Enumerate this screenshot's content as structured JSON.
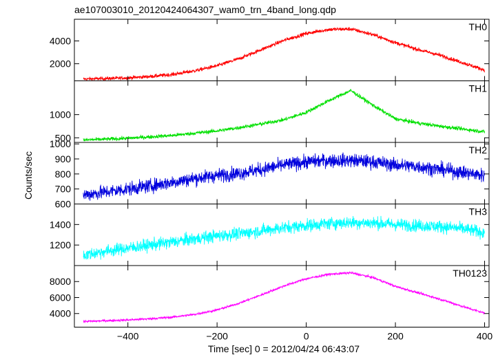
{
  "chart_data": {
    "type": "line",
    "title": "ae107003010_20120424064307_wam0_trn_4band_long.qdp",
    "xlabel": "Time [sec] 0 = 2012/04/24 06:43:07",
    "ylabel": "Counts/sec",
    "xlim": [
      -520,
      410
    ],
    "xticks": [
      -400,
      -200,
      0,
      200,
      400
    ],
    "xtick_labels": [
      "−400",
      "−200",
      "0",
      "200",
      "400"
    ],
    "grid": false,
    "panels": [
      {
        "name": "TH0",
        "color": "#ff0000",
        "ylim": [
          500,
          5900
        ],
        "yticks": [
          2000,
          4000
        ],
        "x": [
          -500,
          -450,
          -400,
          -350,
          -300,
          -250,
          -200,
          -150,
          -100,
          -50,
          0,
          50,
          100,
          150,
          200,
          250,
          300,
          350,
          400
        ],
        "values": [
          650,
          700,
          760,
          880,
          1060,
          1380,
          1820,
          2450,
          3250,
          4050,
          4650,
          5000,
          5050,
          4550,
          3850,
          3250,
          2750,
          2100,
          1450
        ],
        "noise": 160
      },
      {
        "name": "TH1",
        "color": "#00e000",
        "ylim": [
          400,
          1730
        ],
        "yticks": [
          500,
          1000
        ],
        "x": [
          -500,
          -450,
          -400,
          -350,
          -300,
          -250,
          -200,
          -150,
          -100,
          -50,
          0,
          50,
          100,
          150,
          200,
          250,
          300,
          350,
          400
        ],
        "values": [
          450,
          470,
          490,
          520,
          550,
          600,
          650,
          720,
          800,
          890,
          1050,
          1300,
          1520,
          1200,
          910,
          820,
          750,
          690,
          630
        ],
        "noise": 40
      },
      {
        "name": "TH2",
        "color": "#0000dd",
        "ylim": [
          600,
          1010
        ],
        "yticks": [
          600,
          700,
          800,
          900,
          1000
        ],
        "x": [
          -500,
          -450,
          -400,
          -350,
          -300,
          -250,
          -200,
          -150,
          -100,
          -50,
          0,
          50,
          100,
          150,
          200,
          250,
          300,
          350,
          400
        ],
        "values": [
          660,
          680,
          700,
          720,
          745,
          770,
          790,
          805,
          830,
          860,
          880,
          890,
          890,
          880,
          860,
          850,
          830,
          810,
          790
        ],
        "noise": 45
      },
      {
        "name": "TH3",
        "color": "#00ffff",
        "ylim": [
          1000,
          1600
        ],
        "yticks": [
          1200,
          1400
        ],
        "x": [
          -500,
          -450,
          -400,
          -350,
          -300,
          -250,
          -200,
          -150,
          -100,
          -50,
          0,
          50,
          100,
          150,
          200,
          250,
          300,
          350,
          400
        ],
        "values": [
          1100,
          1140,
          1170,
          1200,
          1230,
          1260,
          1290,
          1310,
          1340,
          1370,
          1390,
          1410,
          1420,
          1415,
          1400,
          1390,
          1380,
          1360,
          1320
        ],
        "noise": 60
      },
      {
        "name": "TH0123",
        "color": "#ff00ff",
        "ylim": [
          2300,
          10000
        ],
        "yticks": [
          4000,
          6000,
          8000
        ],
        "x": [
          -500,
          -450,
          -400,
          -350,
          -300,
          -250,
          -200,
          -150,
          -100,
          -50,
          0,
          50,
          100,
          150,
          200,
          250,
          300,
          350,
          400
        ],
        "values": [
          3000,
          3100,
          3200,
          3350,
          3550,
          3900,
          4450,
          5300,
          6350,
          7450,
          8350,
          8900,
          9100,
          8500,
          7400,
          6600,
          5800,
          4900,
          4050
        ],
        "noise": 140
      }
    ]
  }
}
